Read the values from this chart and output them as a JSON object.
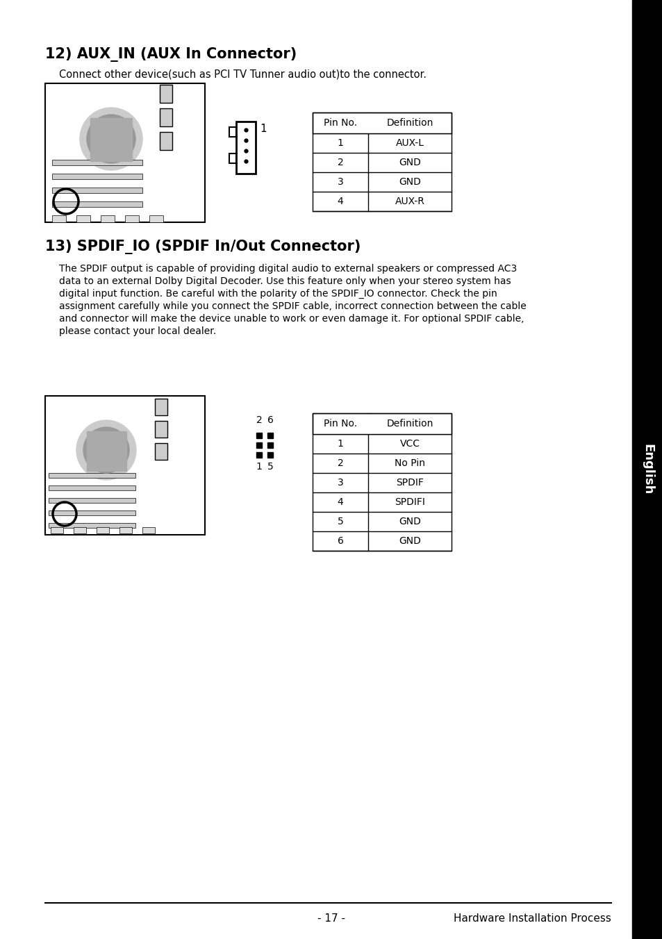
{
  "title12": "12) AUX_IN (AUX In Connector)",
  "desc12": "Connect other device(such as PCI TV Tunner audio out)to the connector.",
  "table12_header": [
    "Pin No.",
    "Definition"
  ],
  "table12_rows": [
    [
      "1",
      "AUX-L"
    ],
    [
      "2",
      "GND"
    ],
    [
      "3",
      "GND"
    ],
    [
      "4",
      "AUX-R"
    ]
  ],
  "title13": "13) SPDIF_IO (SPDIF In/Out Connector)",
  "desc13_lines": [
    "The SPDIF output is capable of providing digital audio to external speakers or compressed AC3",
    "data to an external Dolby Digital Decoder. Use this feature only when your stereo system has",
    "digital input function. Be careful with the polarity of the SPDIF_IO connector. Check the pin",
    "assignment carefully while you connect the SPDIF cable, incorrect connection between the cable",
    "and connector will make the device unable to work or even damage it. For optional SPDIF cable,",
    "please contact your local dealer."
  ],
  "table13_header": [
    "Pin No.",
    "Definition"
  ],
  "table13_rows": [
    [
      "1",
      "VCC"
    ],
    [
      "2",
      "No Pin"
    ],
    [
      "3",
      "SPDIF"
    ],
    [
      "4",
      "SPDIFI"
    ],
    [
      "5",
      "GND"
    ],
    [
      "6",
      "GND"
    ]
  ],
  "footer_left": "- 17 -",
  "footer_right": "Hardware Installation Process",
  "english_sidebar": "English",
  "bg_color": "#ffffff",
  "text_color": "#000000",
  "sidebar_bg": "#000000",
  "sidebar_text": "#ffffff"
}
